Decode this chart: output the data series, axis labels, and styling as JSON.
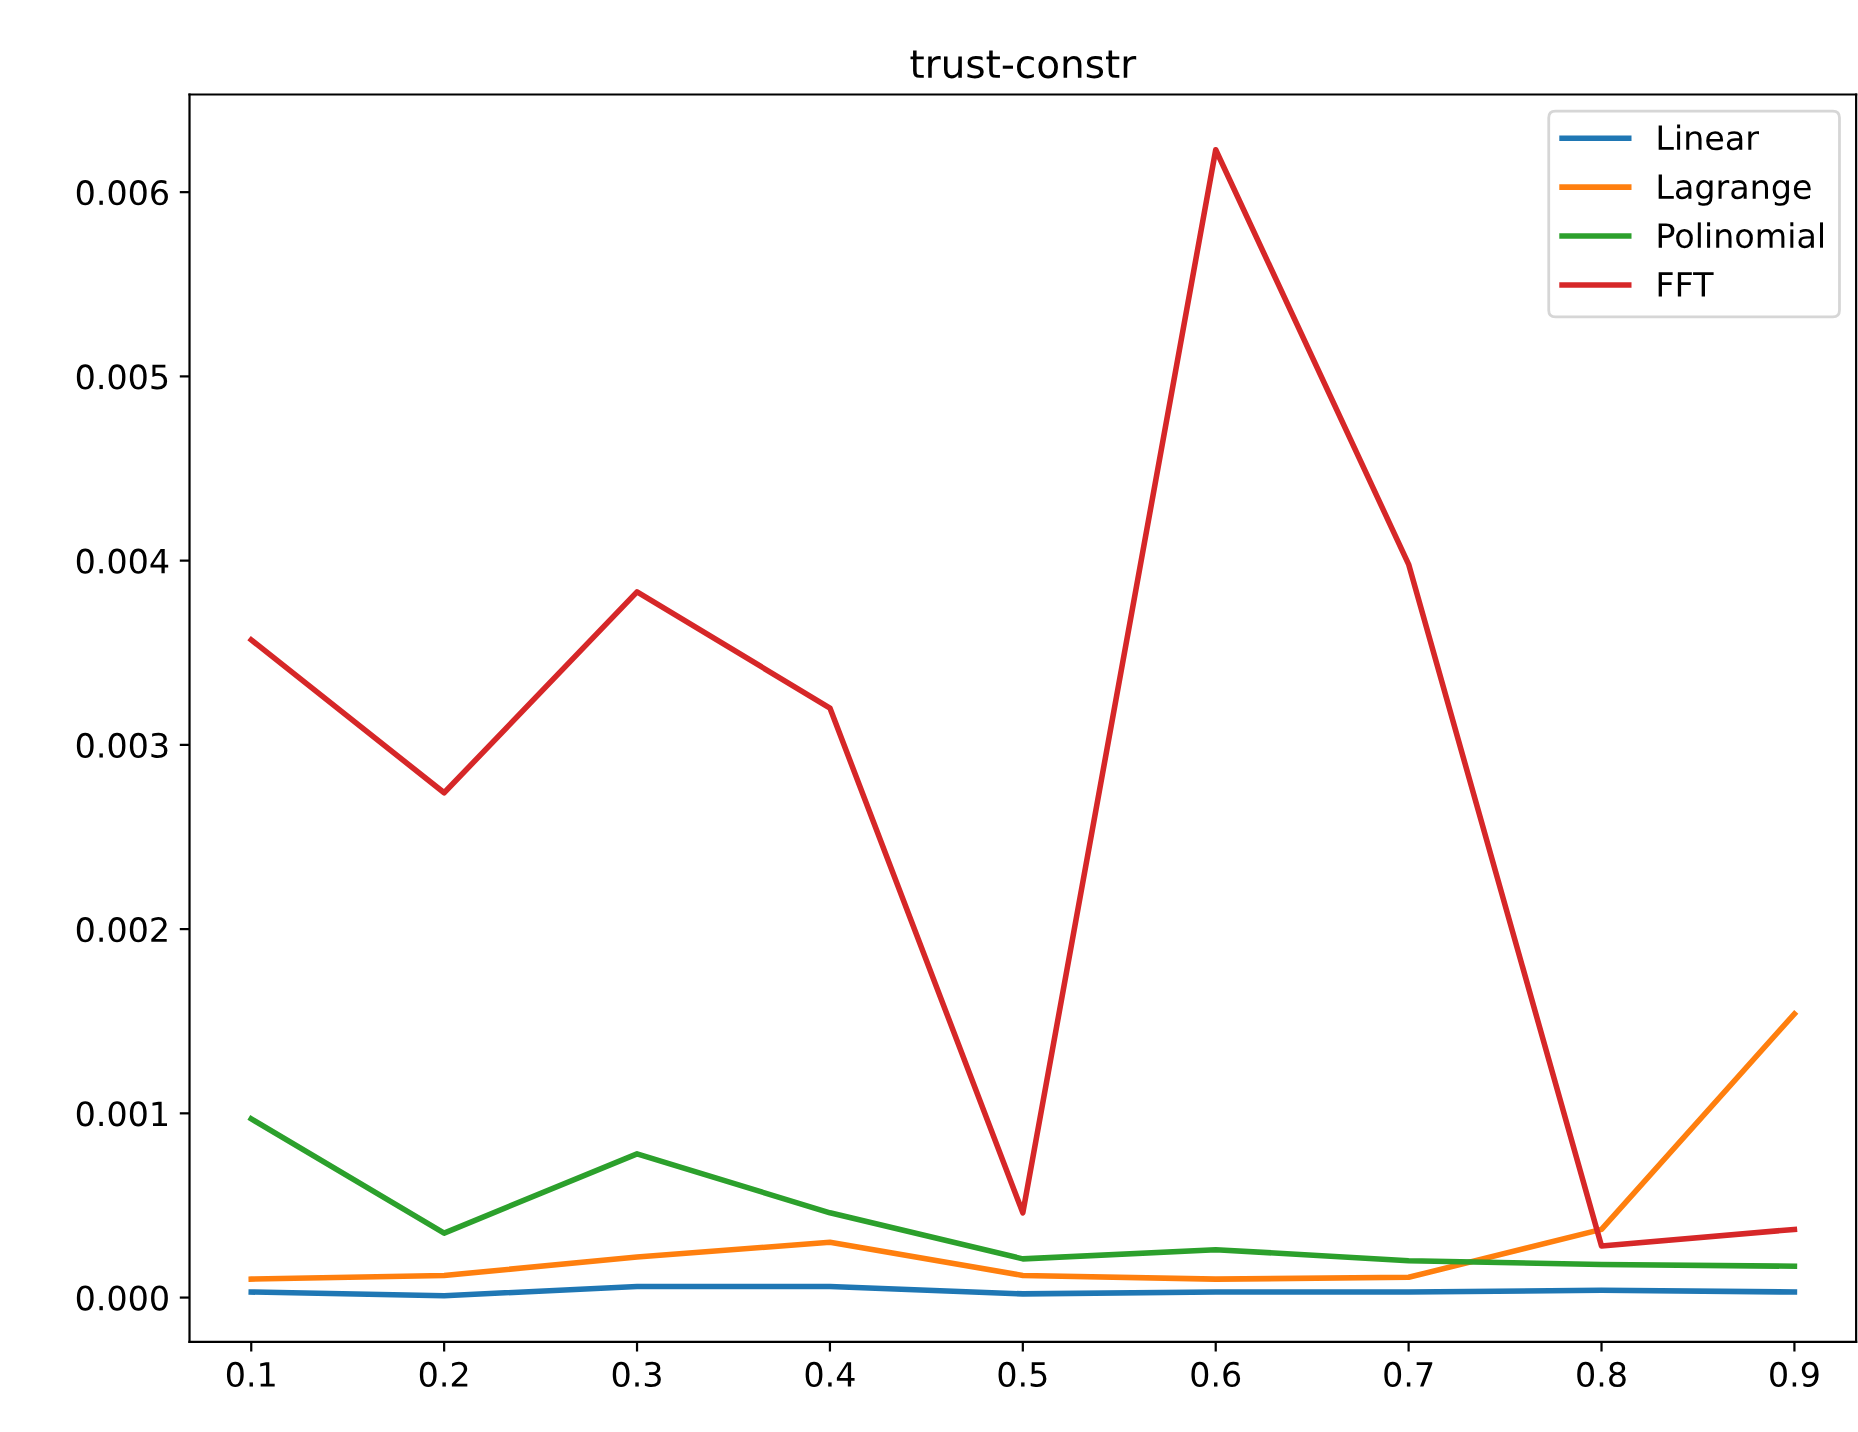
{
  "chart_data": {
    "type": "line",
    "title": "trust-constr",
    "x": [
      0.1,
      0.2,
      0.3,
      0.4,
      0.5,
      0.6,
      0.7,
      0.8,
      0.9
    ],
    "series": [
      {
        "name": "Linear",
        "color": "#1f77b4",
        "values": [
          3e-05,
          1e-05,
          6e-05,
          6e-05,
          2e-05,
          3e-05,
          3e-05,
          4e-05,
          3e-05
        ]
      },
      {
        "name": "Lagrange",
        "color": "#ff7f0e",
        "values": [
          0.0001,
          0.00012,
          0.00022,
          0.0003,
          0.00012,
          0.0001,
          0.00011,
          0.00037,
          0.00154
        ]
      },
      {
        "name": "Polinomial",
        "color": "#2ca02c",
        "values": [
          0.00097,
          0.00035,
          0.00078,
          0.00046,
          0.00021,
          0.00026,
          0.0002,
          0.00018,
          0.00017
        ]
      },
      {
        "name": "FFT",
        "color": "#d62728",
        "values": [
          0.00357,
          0.00274,
          0.00383,
          0.0032,
          0.00046,
          0.00623,
          0.00398,
          0.00028,
          0.00037
        ]
      }
    ],
    "xlim": [
      0.068,
      0.932
    ],
    "ylim": [
      -0.00024,
      0.00653
    ],
    "xticks": [
      0.1,
      0.2,
      0.3,
      0.4,
      0.5,
      0.6,
      0.7,
      0.8,
      0.9
    ],
    "yticks": [
      {
        "value": 0,
        "label": "0.000"
      },
      {
        "value": 0.001,
        "label": "0.001"
      },
      {
        "value": 0.002,
        "label": "0.002"
      },
      {
        "value": 0.003,
        "label": "0.003"
      },
      {
        "value": 0.004,
        "label": "0.004"
      },
      {
        "value": 0.005,
        "label": "0.005"
      },
      {
        "value": 0.006,
        "label": "0.006"
      }
    ],
    "legend": "top right",
    "grid": false
  }
}
